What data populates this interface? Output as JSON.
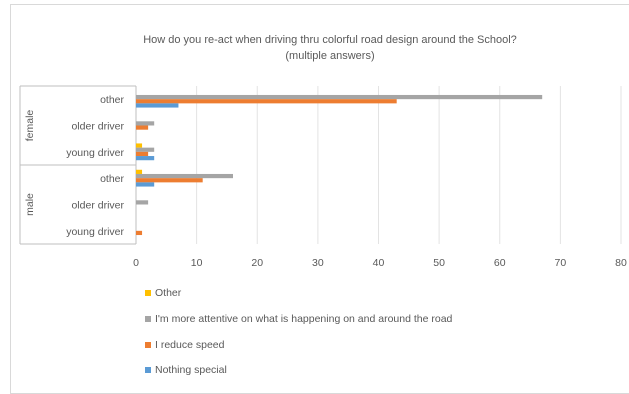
{
  "chart_data": {
    "type": "bar",
    "orientation": "horizontal",
    "title": "How do you re-act when driving thru colorful road design around  the School?",
    "subtitle": "(multiple answers)",
    "groups": [
      {
        "label": "female",
        "categories": [
          "other",
          "older driver",
          "young driver"
        ]
      },
      {
        "label": "male",
        "categories": [
          "other",
          "older driver",
          "young driver"
        ]
      }
    ],
    "categories": [
      "female / other",
      "female / older driver",
      "female / young driver",
      "male / other",
      "male / older driver",
      "male / young driver"
    ],
    "series": [
      {
        "name": "Other",
        "color": "#ffc000",
        "values": [
          0,
          0,
          1,
          1,
          0,
          0
        ]
      },
      {
        "name": "I'm more attentive on what is happening on and around the road",
        "color": "#a5a5a5",
        "values": [
          67,
          3,
          3,
          16,
          2,
          0
        ]
      },
      {
        "name": "I reduce speed",
        "color": "#ed7d31",
        "values": [
          43,
          2,
          2,
          11,
          0,
          1
        ]
      },
      {
        "name": "Nothing special",
        "color": "#5b9bd5",
        "values": [
          7,
          0,
          3,
          3,
          0,
          0
        ]
      }
    ],
    "xlim": [
      0,
      80
    ],
    "xticks": [
      0,
      10,
      20,
      30,
      40,
      50,
      60,
      70,
      80
    ],
    "grid": true,
    "legend_position": "bottom"
  },
  "colors": {
    "grid": "#e3e3e3",
    "axis": "#bfbfbf",
    "text": "#595959"
  }
}
